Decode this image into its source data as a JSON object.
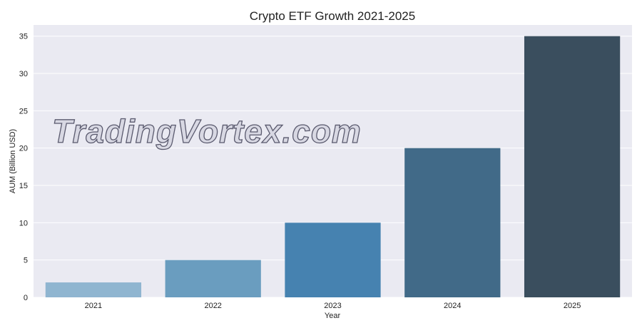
{
  "chart_data": {
    "type": "bar",
    "title": "Crypto ETF Growth 2021-2025",
    "xlabel": "Year",
    "ylabel": "AUM (Billion USD)",
    "categories": [
      "2021",
      "2022",
      "2023",
      "2024",
      "2025"
    ],
    "values": [
      2,
      5,
      10,
      20,
      35
    ],
    "colors": [
      "#8fb5d0",
      "#6a9dbf",
      "#4682b0",
      "#416a88",
      "#3a4e5e"
    ],
    "ylim": [
      0,
      36.5
    ],
    "yticks": [
      0,
      5,
      10,
      15,
      20,
      25,
      30,
      35
    ],
    "grid": true,
    "background": "#eaeaf2"
  },
  "watermark": "TradingVortex.com"
}
